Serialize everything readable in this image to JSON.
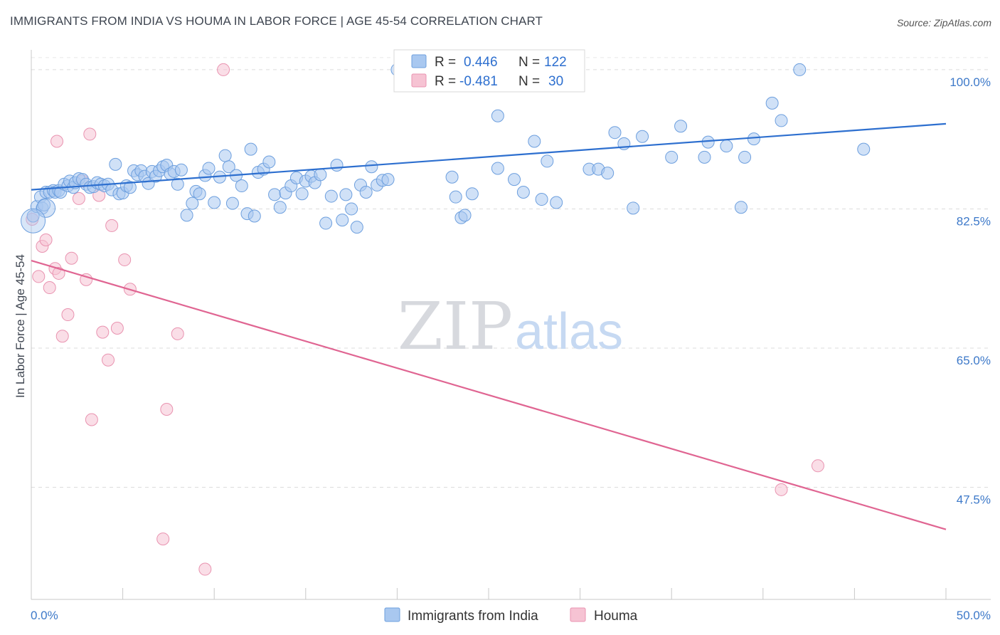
{
  "header": {
    "title": "IMMIGRANTS FROM INDIA VS HOUMA IN LABOR FORCE | AGE 45-54 CORRELATION CHART",
    "source": "Source: ZipAtlas.com"
  },
  "watermark": {
    "zip": "ZIP",
    "atlas": "atlas"
  },
  "legend_box": {
    "rows": [
      {
        "r_label": "R = ",
        "r_value": "0.446",
        "n_label": "N = ",
        "n_value": "122",
        "color": "#a9c8f0"
      },
      {
        "r_label": "R = ",
        "r_value": "-0.481",
        "n_label": "N = ",
        "n_value": "30",
        "color": "#f6b8cb"
      }
    ]
  },
  "colors": {
    "blue_fill": "#a9c8f0",
    "blue_stroke": "#6d9fde",
    "blue_line": "#2d6fcf",
    "pink_fill": "#f6c3d3",
    "pink_stroke": "#e993b0",
    "pink_line": "#e06592",
    "tick_text": "#3d79c9"
  },
  "chart_data": {
    "type": "scatter",
    "title": "IMMIGRANTS FROM INDIA VS HOUMA IN LABOR FORCE | AGE 45-54 CORRELATION CHART",
    "xlabel": "",
    "ylabel": "In Labor Force | Age 45-54",
    "xlim": [
      0,
      50
    ],
    "ylim": [
      33.4,
      102.5
    ],
    "x_tick_labels": [
      "0.0%",
      "50.0%"
    ],
    "y_ticks": [
      {
        "value": 47.5,
        "label": "47.5%"
      },
      {
        "value": 65.0,
        "label": "65.0%"
      },
      {
        "value": 82.5,
        "label": "82.5%"
      },
      {
        "value": 100.0,
        "label": "100.0%"
      }
    ],
    "grid": "horizontal dashed",
    "legend_position": "bottom-center",
    "series": [
      {
        "name": "Immigrants from India",
        "color": "#a9c8f0",
        "trend": {
          "x": [
            0,
            50
          ],
          "y": [
            84.9,
            93.2
          ]
        },
        "points": [
          [
            0.1,
            81.6
          ],
          [
            0.3,
            82.8
          ],
          [
            0.5,
            84.0
          ],
          [
            0.6,
            82.6
          ],
          [
            0.7,
            83.0
          ],
          [
            0.8,
            84.6
          ],
          [
            1.0,
            84.6
          ],
          [
            1.2,
            84.8
          ],
          [
            1.3,
            84.6
          ],
          [
            1.5,
            84.8
          ],
          [
            1.6,
            84.6
          ],
          [
            1.8,
            85.6
          ],
          [
            2.0,
            85.4
          ],
          [
            2.1,
            86.0
          ],
          [
            2.3,
            85.2
          ],
          [
            2.4,
            85.8
          ],
          [
            2.6,
            86.3
          ],
          [
            2.8,
            86.2
          ],
          [
            3.0,
            85.6
          ],
          [
            3.2,
            85.2
          ],
          [
            3.4,
            85.3
          ],
          [
            3.6,
            85.8
          ],
          [
            3.8,
            85.6
          ],
          [
            4.0,
            85.4
          ],
          [
            4.2,
            85.6
          ],
          [
            4.4,
            84.9
          ],
          [
            4.6,
            88.1
          ],
          [
            4.8,
            84.4
          ],
          [
            5.0,
            84.5
          ],
          [
            5.2,
            85.4
          ],
          [
            5.4,
            85.2
          ],
          [
            5.6,
            87.3
          ],
          [
            5.8,
            86.8
          ],
          [
            6.0,
            87.3
          ],
          [
            6.2,
            86.6
          ],
          [
            6.4,
            85.7
          ],
          [
            6.6,
            87.2
          ],
          [
            6.8,
            86.6
          ],
          [
            7.0,
            87.3
          ],
          [
            7.2,
            87.8
          ],
          [
            7.4,
            88.0
          ],
          [
            7.6,
            86.9
          ],
          [
            7.8,
            87.2
          ],
          [
            8.0,
            85.6
          ],
          [
            8.2,
            87.4
          ],
          [
            8.5,
            81.7
          ],
          [
            8.8,
            83.2
          ],
          [
            9.0,
            84.7
          ],
          [
            9.2,
            84.4
          ],
          [
            9.5,
            86.7
          ],
          [
            9.7,
            87.6
          ],
          [
            10.0,
            83.3
          ],
          [
            10.3,
            86.5
          ],
          [
            10.6,
            89.2
          ],
          [
            10.8,
            87.8
          ],
          [
            11.0,
            83.2
          ],
          [
            11.2,
            86.7
          ],
          [
            11.5,
            85.4
          ],
          [
            11.8,
            81.9
          ],
          [
            12.0,
            90.0
          ],
          [
            12.2,
            81.6
          ],
          [
            12.4,
            87.1
          ],
          [
            12.7,
            87.5
          ],
          [
            13.0,
            88.4
          ],
          [
            13.3,
            84.3
          ],
          [
            13.6,
            82.7
          ],
          [
            13.9,
            84.5
          ],
          [
            14.2,
            85.4
          ],
          [
            14.5,
            86.4
          ],
          [
            14.8,
            84.4
          ],
          [
            15.0,
            86.0
          ],
          [
            15.3,
            86.6
          ],
          [
            15.5,
            85.8
          ],
          [
            15.8,
            86.8
          ],
          [
            16.1,
            80.7
          ],
          [
            16.4,
            84.1
          ],
          [
            16.7,
            88.0
          ],
          [
            17.0,
            81.1
          ],
          [
            17.2,
            84.3
          ],
          [
            17.5,
            82.5
          ],
          [
            17.8,
            80.2
          ],
          [
            18.0,
            85.5
          ],
          [
            18.3,
            84.6
          ],
          [
            18.6,
            87.8
          ],
          [
            18.9,
            85.5
          ],
          [
            19.2,
            86.1
          ],
          [
            19.5,
            86.2
          ],
          [
            20.0,
            100.0
          ],
          [
            21.2,
            100.0
          ],
          [
            21.3,
            100.0
          ],
          [
            23.0,
            86.5
          ],
          [
            23.2,
            84.0
          ],
          [
            23.5,
            81.4
          ],
          [
            23.7,
            81.7
          ],
          [
            24.1,
            84.4
          ],
          [
            25.5,
            94.2
          ],
          [
            25.5,
            87.6
          ],
          [
            26.4,
            86.2
          ],
          [
            26.9,
            84.6
          ],
          [
            27.5,
            91.0
          ],
          [
            27.9,
            83.7
          ],
          [
            28.2,
            88.5
          ],
          [
            28.7,
            83.3
          ],
          [
            30.5,
            87.5
          ],
          [
            31.0,
            87.5
          ],
          [
            31.5,
            87.0
          ],
          [
            31.9,
            92.1
          ],
          [
            32.4,
            90.7
          ],
          [
            32.9,
            82.6
          ],
          [
            33.4,
            91.6
          ],
          [
            35.0,
            89.0
          ],
          [
            35.5,
            92.9
          ],
          [
            36.8,
            89.0
          ],
          [
            37.0,
            90.9
          ],
          [
            38.0,
            90.4
          ],
          [
            38.8,
            82.7
          ],
          [
            39.0,
            89.0
          ],
          [
            39.5,
            91.3
          ],
          [
            40.5,
            95.8
          ],
          [
            41.0,
            93.6
          ],
          [
            42.0,
            100.0
          ],
          [
            45.5,
            90.0
          ]
        ]
      },
      {
        "name": "Houma",
        "color": "#f6b8cb",
        "trend": {
          "x": [
            0,
            50
          ],
          "y": [
            76.0,
            42.2
          ]
        },
        "points": [
          [
            0.05,
            81.2
          ],
          [
            0.4,
            74.0
          ],
          [
            0.6,
            77.8
          ],
          [
            0.8,
            78.6
          ],
          [
            1.0,
            72.6
          ],
          [
            1.3,
            75.0
          ],
          [
            1.4,
            91.0
          ],
          [
            1.5,
            74.4
          ],
          [
            1.7,
            66.5
          ],
          [
            2.0,
            69.2
          ],
          [
            2.2,
            76.3
          ],
          [
            2.6,
            83.8
          ],
          [
            2.8,
            86.0
          ],
          [
            3.0,
            73.6
          ],
          [
            3.2,
            91.9
          ],
          [
            3.3,
            56.0
          ],
          [
            3.7,
            84.2
          ],
          [
            3.9,
            67.0
          ],
          [
            4.2,
            63.5
          ],
          [
            4.4,
            80.4
          ],
          [
            4.7,
            67.5
          ],
          [
            5.1,
            76.1
          ],
          [
            5.4,
            72.4
          ],
          [
            7.2,
            41.0
          ],
          [
            7.4,
            57.3
          ],
          [
            8.0,
            66.8
          ],
          [
            9.5,
            37.2
          ],
          [
            10.5,
            100.0
          ],
          [
            41.0,
            47.2
          ],
          [
            43.0,
            50.2
          ]
        ]
      }
    ]
  },
  "bottom_legend": {
    "items": [
      {
        "label": "Immigrants from India",
        "color": "#a9c8f0"
      },
      {
        "label": "Houma",
        "color": "#f6b8cb"
      }
    ]
  },
  "axis": {
    "ylabel": "In Labor Force | Age 45-54",
    "x_left": "0.0%",
    "x_right": "50.0%"
  }
}
